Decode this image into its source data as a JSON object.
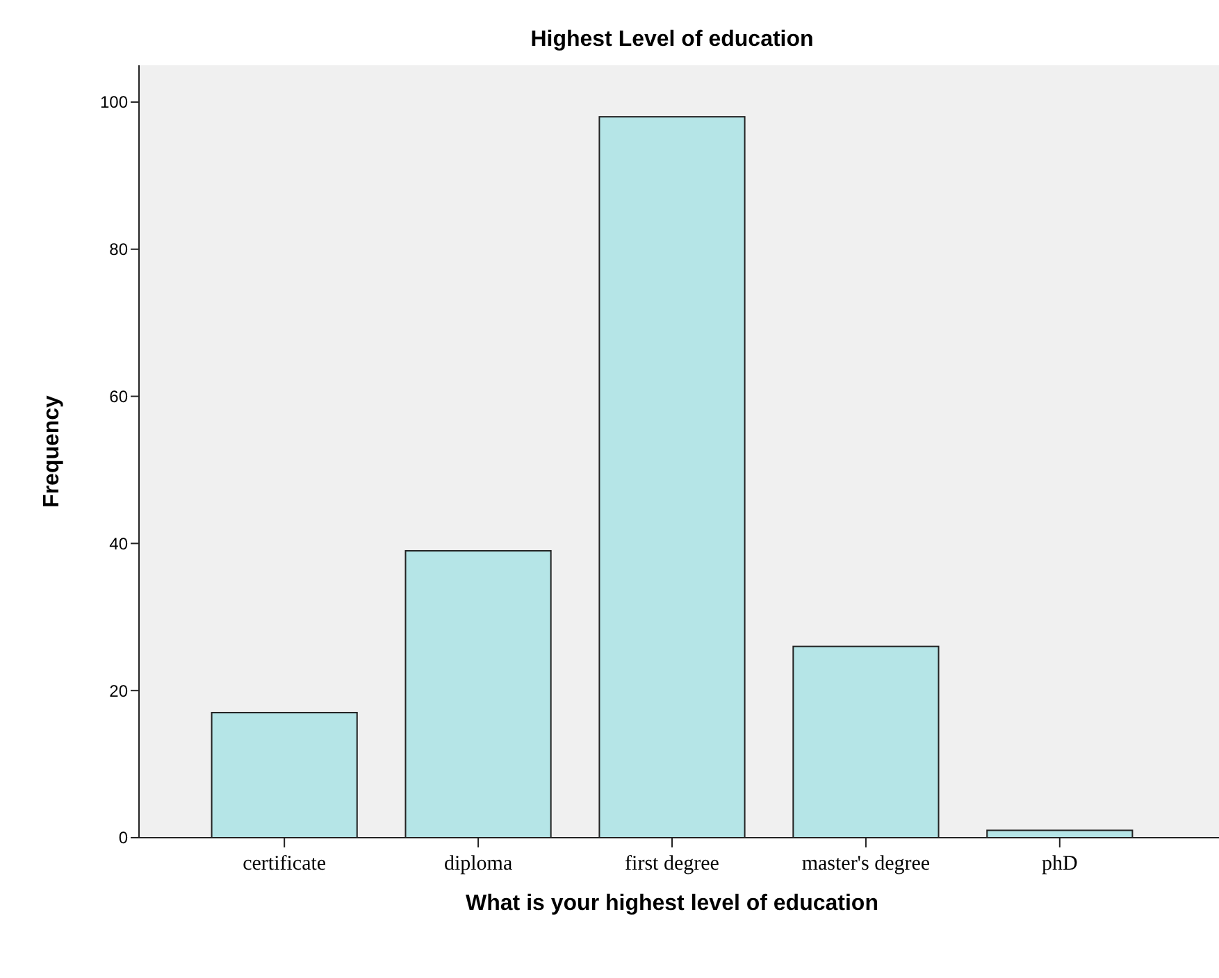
{
  "chart_data": {
    "type": "bar",
    "title": "Highest Level of education",
    "xlabel": "What is your highest level of education",
    "ylabel": "Frequency",
    "categories": [
      "certificate",
      "diploma",
      "first degree",
      "master's degree",
      "phD"
    ],
    "values": [
      17,
      39,
      98,
      26,
      1
    ],
    "color": "#b5e5e7",
    "ylim": [
      0,
      105
    ],
    "yticks": [
      0,
      20,
      40,
      60,
      80,
      100
    ],
    "grid": false
  }
}
